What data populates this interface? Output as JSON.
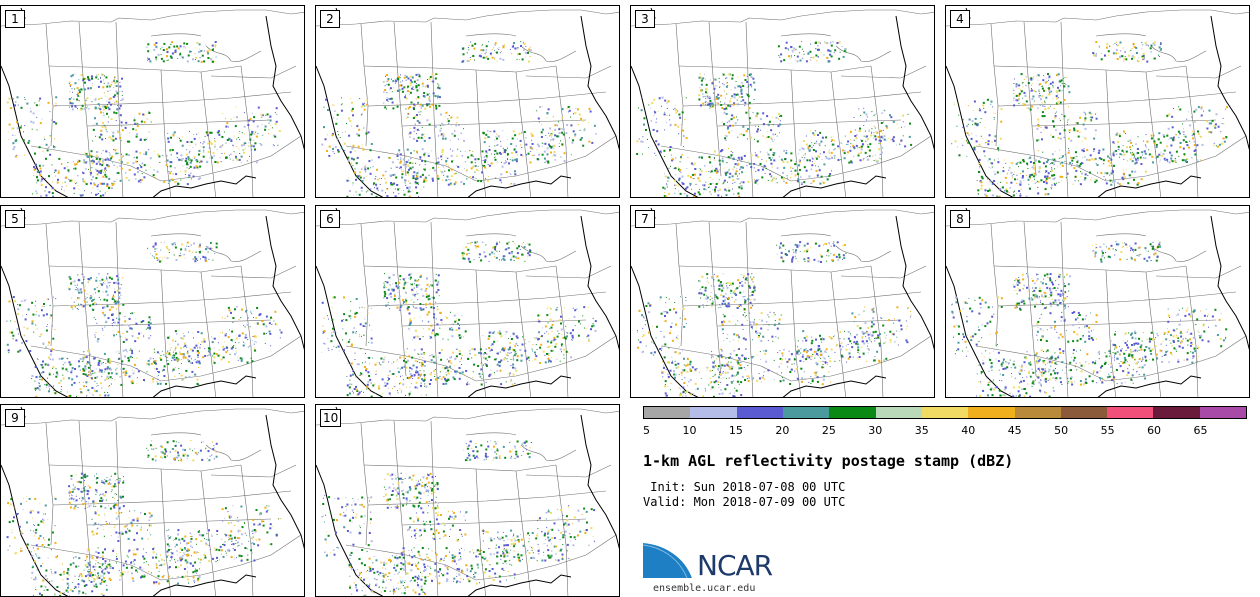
{
  "panels": [
    {
      "label": "1"
    },
    {
      "label": "2"
    },
    {
      "label": "3"
    },
    {
      "label": "4"
    },
    {
      "label": "5"
    },
    {
      "label": "6"
    },
    {
      "label": "7"
    },
    {
      "label": "8"
    },
    {
      "label": "9"
    },
    {
      "label": "10"
    }
  ],
  "colorbar": {
    "ticks": [
      "5",
      "10",
      "15",
      "20",
      "25",
      "30",
      "35",
      "40",
      "45",
      "50",
      "55",
      "60",
      "65"
    ],
    "colors": [
      "#a6a6a6",
      "#b4bde8",
      "#5a5ad2",
      "#4a9a9e",
      "#0a8a14",
      "#b9d9b9",
      "#f0dc64",
      "#f0b01e",
      "#b88a3a",
      "#8a5a3a",
      "#f0507a",
      "#6a1a3a",
      "#a84aa8"
    ]
  },
  "title": "1-km AGL reflectivity postage stamp (dBZ)",
  "init": " Init: Sun 2018-07-08 00 UTC",
  "valid": "Valid: Mon 2018-07-09 00 UTC",
  "logo": {
    "text": "NCAR",
    "url": "ensemble.ucar.edu"
  }
}
